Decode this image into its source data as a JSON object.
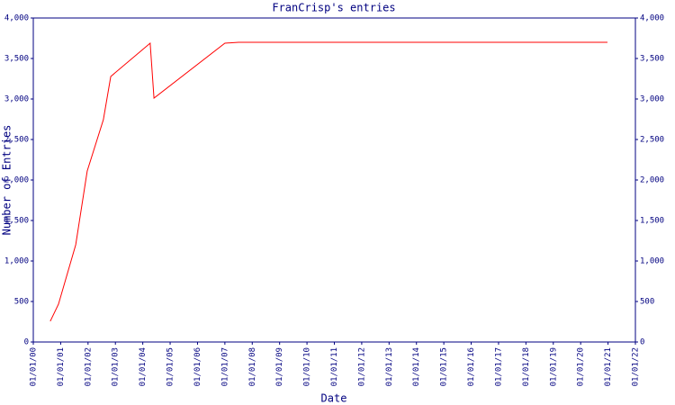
{
  "chart_data": {
    "type": "line",
    "title": "FranCrisp's entries",
    "xlabel": "Date",
    "ylabel": "Number of Entries",
    "x": [
      0.62,
      0.92,
      1.55,
      1.97,
      2.56,
      2.83,
      4.27,
      4.41,
      7.0,
      7.5,
      20.98
    ],
    "series": [
      {
        "color": "#ff0000",
        "values": [
          256,
          467,
          1200,
          2111,
          2744,
          3278,
          3689,
          3011,
          3689,
          3700,
          3700
        ]
      }
    ],
    "xlim": [
      0,
      22
    ],
    "xticks": [
      {
        "value": 0,
        "label": "01/01/00"
      },
      {
        "value": 1,
        "label": "01/01/01"
      },
      {
        "value": 2,
        "label": "01/01/02"
      },
      {
        "value": 3,
        "label": "01/01/03"
      },
      {
        "value": 4,
        "label": "01/01/04"
      },
      {
        "value": 5,
        "label": "01/01/05"
      },
      {
        "value": 6,
        "label": "01/01/06"
      },
      {
        "value": 7,
        "label": "01/01/07"
      },
      {
        "value": 8,
        "label": "01/01/08"
      },
      {
        "value": 9,
        "label": "01/01/09"
      },
      {
        "value": 10,
        "label": "01/01/10"
      },
      {
        "value": 11,
        "label": "01/01/11"
      },
      {
        "value": 12,
        "label": "01/01/12"
      },
      {
        "value": 13,
        "label": "01/01/13"
      },
      {
        "value": 14,
        "label": "01/01/14"
      },
      {
        "value": 15,
        "label": "01/01/15"
      },
      {
        "value": 16,
        "label": "01/01/16"
      },
      {
        "value": 17,
        "label": "01/01/17"
      },
      {
        "value": 18,
        "label": "01/01/18"
      },
      {
        "value": 19,
        "label": "01/01/19"
      },
      {
        "value": 20,
        "label": "01/01/20"
      },
      {
        "value": 21,
        "label": "01/01/21"
      },
      {
        "value": 22,
        "label": "01/01/22"
      }
    ],
    "ylim": [
      0,
      4000
    ],
    "yticks": [
      0,
      500,
      {
        "value": 1000,
        "label": "1,000"
      },
      {
        "value": 1500,
        "label": "1,500"
      },
      {
        "value": 2000,
        "label": "2,000"
      },
      {
        "value": 2500,
        "label": "2,500"
      },
      {
        "value": 3000,
        "label": "3,000"
      },
      {
        "value": 3500,
        "label": "3,500"
      },
      {
        "value": 4000,
        "label": "4,000"
      }
    ],
    "axis_color": "#000080"
  }
}
